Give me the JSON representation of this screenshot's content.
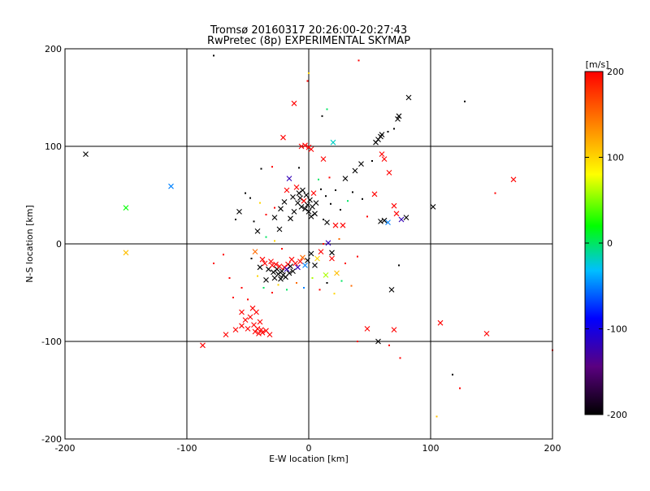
{
  "chart_data": {
    "type": "scatter",
    "title": "Tromsø 20160317 20:26:00-20:27:43",
    "subtitle": "RwPretec (8p) EXPERIMENTAL SKYMAP",
    "xlabel": "E-W location [km]",
    "ylabel": "N-S location [km]",
    "xlim": [
      -200,
      200
    ],
    "ylim": [
      -200,
      200
    ],
    "xticks": [
      "-200",
      "-100",
      "0",
      "100",
      "200"
    ],
    "yticks": [
      "-200",
      "-100",
      "0",
      "100",
      "200"
    ],
    "grid": true,
    "colorbar": {
      "label": "[m/s]",
      "min": -200,
      "max": 200,
      "ticks": [
        "200",
        "100",
        "0",
        "-100",
        "-200"
      ],
      "colormap": [
        "#000000",
        "#5a0080",
        "#0000ff",
        "#00bfff",
        "#00ff00",
        "#ffff00",
        "#ff8000",
        "#ff0000"
      ]
    },
    "marker_legend": {
      "cross": "x",
      "dot": "small point"
    },
    "points": [
      {
        "x": -183,
        "y": 92,
        "v": -200,
        "m": "x"
      },
      {
        "x": -150,
        "y": 37,
        "v": 20,
        "m": "x"
      },
      {
        "x": -150,
        "y": -9,
        "v": 110,
        "m": "x"
      },
      {
        "x": -113,
        "y": 59,
        "v": -50,
        "m": "x"
      },
      {
        "x": -87,
        "y": -104,
        "v": 200,
        "m": "x"
      },
      {
        "x": -68,
        "y": -93,
        "v": 200,
        "m": "x"
      },
      {
        "x": -60,
        "y": -88,
        "v": 200,
        "m": "x"
      },
      {
        "x": -57,
        "y": 33,
        "v": -200,
        "m": "x"
      },
      {
        "x": -55,
        "y": -70,
        "v": 200,
        "m": "x"
      },
      {
        "x": -55,
        "y": -84,
        "v": 200,
        "m": "x"
      },
      {
        "x": -52,
        "y": -78,
        "v": 200,
        "m": "x"
      },
      {
        "x": -50,
        "y": -87,
        "v": 200,
        "m": "x"
      },
      {
        "x": -48,
        "y": -75,
        "v": 200,
        "m": "x"
      },
      {
        "x": -46,
        "y": -66,
        "v": 200,
        "m": "x"
      },
      {
        "x": -45,
        "y": -83,
        "v": 200,
        "m": "x"
      },
      {
        "x": -44,
        "y": -90,
        "v": 200,
        "m": "x"
      },
      {
        "x": -43,
        "y": -70,
        "v": 200,
        "m": "x"
      },
      {
        "x": -42,
        "y": -87,
        "v": 200,
        "m": "x"
      },
      {
        "x": -41,
        "y": -92,
        "v": 200,
        "m": "x"
      },
      {
        "x": -40,
        "y": -80,
        "v": 200,
        "m": "x"
      },
      {
        "x": -39,
        "y": -88,
        "v": 200,
        "m": "x"
      },
      {
        "x": -38,
        "y": -91,
        "v": 200,
        "m": "x"
      },
      {
        "x": -35,
        "y": -89,
        "v": 200,
        "m": "x"
      },
      {
        "x": -32,
        "y": -93,
        "v": 200,
        "m": "x"
      },
      {
        "x": -42,
        "y": 13,
        "v": -200,
        "m": "x"
      },
      {
        "x": -44,
        "y": -8,
        "v": 150,
        "m": "x"
      },
      {
        "x": -40,
        "y": -24,
        "v": -200,
        "m": "x"
      },
      {
        "x": -38,
        "y": -16,
        "v": 200,
        "m": "x"
      },
      {
        "x": -36,
        "y": -20,
        "v": 200,
        "m": "x"
      },
      {
        "x": -35,
        "y": -37,
        "v": -200,
        "m": "x"
      },
      {
        "x": -33,
        "y": -26,
        "v": -200,
        "m": "x"
      },
      {
        "x": -31,
        "y": -18,
        "v": 200,
        "m": "x"
      },
      {
        "x": -30,
        "y": -22,
        "v": 200,
        "m": "x"
      },
      {
        "x": -29,
        "y": -29,
        "v": -200,
        "m": "x"
      },
      {
        "x": -28,
        "y": -35,
        "v": -200,
        "m": "x"
      },
      {
        "x": -27,
        "y": -21,
        "v": 200,
        "m": "x"
      },
      {
        "x": -26,
        "y": -26,
        "v": -200,
        "m": "x"
      },
      {
        "x": -25,
        "y": -31,
        "v": -200,
        "m": "x"
      },
      {
        "x": -24,
        "y": -23,
        "v": 200,
        "m": "x"
      },
      {
        "x": -23,
        "y": -36,
        "v": -200,
        "m": "x"
      },
      {
        "x": -22,
        "y": -28,
        "v": -200,
        "m": "x"
      },
      {
        "x": -21,
        "y": -32,
        "v": -200,
        "m": "x"
      },
      {
        "x": -20,
        "y": -24,
        "v": 200,
        "m": "x"
      },
      {
        "x": -19,
        "y": -34,
        "v": -200,
        "m": "x"
      },
      {
        "x": -18,
        "y": -26,
        "v": -120,
        "m": "x"
      },
      {
        "x": -17,
        "y": -21,
        "v": 200,
        "m": "x"
      },
      {
        "x": -16,
        "y": -30,
        "v": -200,
        "m": "x"
      },
      {
        "x": -15,
        "y": -23,
        "v": -200,
        "m": "x"
      },
      {
        "x": -14,
        "y": -16,
        "v": 200,
        "m": "x"
      },
      {
        "x": -13,
        "y": -28,
        "v": -200,
        "m": "x"
      },
      {
        "x": -11,
        "y": -20,
        "v": 200,
        "m": "x"
      },
      {
        "x": -9,
        "y": -24,
        "v": -120,
        "m": "x"
      },
      {
        "x": -7,
        "y": -18,
        "v": 200,
        "m": "x"
      },
      {
        "x": -5,
        "y": -14,
        "v": 150,
        "m": "x"
      },
      {
        "x": -3,
        "y": -22,
        "v": -50,
        "m": "x"
      },
      {
        "x": -1,
        "y": -17,
        "v": -200,
        "m": "x"
      },
      {
        "x": 2,
        "y": -10,
        "v": -200,
        "m": "x"
      },
      {
        "x": 5,
        "y": -22,
        "v": -200,
        "m": "x"
      },
      {
        "x": 7,
        "y": -15,
        "v": 100,
        "m": "x"
      },
      {
        "x": 10,
        "y": -8,
        "v": 200,
        "m": "x"
      },
      {
        "x": 14,
        "y": -32,
        "v": 60,
        "m": "x"
      },
      {
        "x": 19,
        "y": -15,
        "v": 200,
        "m": "x"
      },
      {
        "x": 23,
        "y": -30,
        "v": 110,
        "m": "x"
      },
      {
        "x": 19,
        "y": -9,
        "v": -200,
        "m": "x"
      },
      {
        "x": -28,
        "y": 27,
        "v": -200,
        "m": "x"
      },
      {
        "x": -24,
        "y": 15,
        "v": -200,
        "m": "x"
      },
      {
        "x": -23,
        "y": 36,
        "v": -200,
        "m": "x"
      },
      {
        "x": -20,
        "y": 43,
        "v": -200,
        "m": "x"
      },
      {
        "x": -18,
        "y": 55,
        "v": 200,
        "m": "x"
      },
      {
        "x": -16,
        "y": 67,
        "v": -120,
        "m": "x"
      },
      {
        "x": -15,
        "y": 26,
        "v": -200,
        "m": "x"
      },
      {
        "x": -13,
        "y": 48,
        "v": -200,
        "m": "x"
      },
      {
        "x": -12,
        "y": 33,
        "v": -200,
        "m": "x"
      },
      {
        "x": -10,
        "y": 58,
        "v": 200,
        "m": "x"
      },
      {
        "x": -9,
        "y": 42,
        "v": -200,
        "m": "x"
      },
      {
        "x": -8,
        "y": 52,
        "v": -200,
        "m": "x"
      },
      {
        "x": -7,
        "y": 47,
        "v": -200,
        "m": "x"
      },
      {
        "x": -6,
        "y": 38,
        "v": -200,
        "m": "x"
      },
      {
        "x": -5,
        "y": 55,
        "v": -200,
        "m": "x"
      },
      {
        "x": -4,
        "y": 44,
        "v": 200,
        "m": "x"
      },
      {
        "x": -3,
        "y": 36,
        "v": -200,
        "m": "x"
      },
      {
        "x": -2,
        "y": 50,
        "v": -200,
        "m": "x"
      },
      {
        "x": -1,
        "y": 40,
        "v": -200,
        "m": "x"
      },
      {
        "x": 0,
        "y": 33,
        "v": -200,
        "m": "x"
      },
      {
        "x": 1,
        "y": 45,
        "v": -200,
        "m": "x"
      },
      {
        "x": 2,
        "y": 28,
        "v": -200,
        "m": "x"
      },
      {
        "x": 3,
        "y": 38,
        "v": -200,
        "m": "x"
      },
      {
        "x": 4,
        "y": 52,
        "v": 200,
        "m": "x"
      },
      {
        "x": 5,
        "y": 31,
        "v": -200,
        "m": "x"
      },
      {
        "x": 6,
        "y": 42,
        "v": -200,
        "m": "x"
      },
      {
        "x": -6,
        "y": 100,
        "v": 200,
        "m": "x"
      },
      {
        "x": -3,
        "y": 101,
        "v": 200,
        "m": "x"
      },
      {
        "x": 0,
        "y": 99,
        "v": 200,
        "m": "x"
      },
      {
        "x": 2,
        "y": 97,
        "v": 200,
        "m": "x"
      },
      {
        "x": -12,
        "y": 144,
        "v": 200,
        "m": "x"
      },
      {
        "x": -21,
        "y": 109,
        "v": 200,
        "m": "x"
      },
      {
        "x": 12,
        "y": 87,
        "v": 200,
        "m": "x"
      },
      {
        "x": 20,
        "y": 104,
        "v": -20,
        "m": "x"
      },
      {
        "x": 16,
        "y": 1,
        "v": -120,
        "m": "x"
      },
      {
        "x": 15,
        "y": 22,
        "v": -200,
        "m": "x"
      },
      {
        "x": 22,
        "y": 19,
        "v": 200,
        "m": "x"
      },
      {
        "x": 28,
        "y": 19,
        "v": 200,
        "m": "x"
      },
      {
        "x": 30,
        "y": 67,
        "v": -200,
        "m": "x"
      },
      {
        "x": 38,
        "y": 75,
        "v": -200,
        "m": "x"
      },
      {
        "x": 43,
        "y": 82,
        "v": -200,
        "m": "x"
      },
      {
        "x": 55,
        "y": 104,
        "v": -200,
        "m": "x"
      },
      {
        "x": 57,
        "y": 107,
        "v": -200,
        "m": "x"
      },
      {
        "x": 59,
        "y": 110,
        "v": -200,
        "m": "x"
      },
      {
        "x": 60,
        "y": 112,
        "v": -200,
        "m": "x"
      },
      {
        "x": 73,
        "y": 128,
        "v": -200,
        "m": "x"
      },
      {
        "x": 74,
        "y": 131,
        "v": -200,
        "m": "x"
      },
      {
        "x": 82,
        "y": 150,
        "v": -200,
        "m": "x"
      },
      {
        "x": 60,
        "y": 92,
        "v": 200,
        "m": "x"
      },
      {
        "x": 62,
        "y": 87,
        "v": 200,
        "m": "x"
      },
      {
        "x": 66,
        "y": 73,
        "v": 200,
        "m": "x"
      },
      {
        "x": 54,
        "y": 51,
        "v": 200,
        "m": "x"
      },
      {
        "x": 59,
        "y": 23,
        "v": -200,
        "m": "x"
      },
      {
        "x": 62,
        "y": 24,
        "v": -200,
        "m": "x"
      },
      {
        "x": 65,
        "y": 22,
        "v": -50,
        "m": "x"
      },
      {
        "x": 70,
        "y": 39,
        "v": 200,
        "m": "x"
      },
      {
        "x": 72,
        "y": 31,
        "v": 200,
        "m": "x"
      },
      {
        "x": 76,
        "y": 25,
        "v": -120,
        "m": "x"
      },
      {
        "x": 80,
        "y": 27,
        "v": -200,
        "m": "x"
      },
      {
        "x": 102,
        "y": 38,
        "v": -200,
        "m": "x"
      },
      {
        "x": 168,
        "y": 66,
        "v": 200,
        "m": "x"
      },
      {
        "x": 108,
        "y": -81,
        "v": 200,
        "m": "x"
      },
      {
        "x": 146,
        "y": -92,
        "v": 200,
        "m": "x"
      },
      {
        "x": 48,
        "y": -87,
        "v": 200,
        "m": "x"
      },
      {
        "x": 57,
        "y": -100,
        "v": -200,
        "m": "x"
      },
      {
        "x": 68,
        "y": -47,
        "v": -200,
        "m": "x"
      },
      {
        "x": 70,
        "y": -88,
        "v": 200,
        "m": "x"
      },
      {
        "x": -78,
        "y": 193,
        "v": -200,
        "m": "."
      },
      {
        "x": 41,
        "y": 188,
        "v": 200,
        "m": "."
      },
      {
        "x": 0,
        "y": 175,
        "v": 100,
        "m": "."
      },
      {
        "x": -1,
        "y": 167,
        "v": 200,
        "m": "."
      },
      {
        "x": 15,
        "y": 138,
        "v": 0,
        "m": "."
      },
      {
        "x": 11,
        "y": 131,
        "v": -200,
        "m": "."
      },
      {
        "x": 128,
        "y": 146,
        "v": -200,
        "m": "."
      },
      {
        "x": 153,
        "y": 52,
        "v": 200,
        "m": "."
      },
      {
        "x": -52,
        "y": 52,
        "v": -200,
        "m": "."
      },
      {
        "x": -48,
        "y": 47,
        "v": -200,
        "m": "."
      },
      {
        "x": -39,
        "y": 77,
        "v": -200,
        "m": "."
      },
      {
        "x": -30,
        "y": 79,
        "v": 200,
        "m": "."
      },
      {
        "x": -45,
        "y": 23,
        "v": -200,
        "m": "."
      },
      {
        "x": -60,
        "y": 25,
        "v": -200,
        "m": "."
      },
      {
        "x": -28,
        "y": 37,
        "v": 200,
        "m": "."
      },
      {
        "x": -35,
        "y": 30,
        "v": 200,
        "m": "."
      },
      {
        "x": -40,
        "y": 42,
        "v": 100,
        "m": "."
      },
      {
        "x": 10,
        "y": 56,
        "v": -200,
        "m": "."
      },
      {
        "x": 14,
        "y": 49,
        "v": -200,
        "m": "."
      },
      {
        "x": 18,
        "y": 41,
        "v": -200,
        "m": "."
      },
      {
        "x": 22,
        "y": 55,
        "v": -200,
        "m": "."
      },
      {
        "x": 26,
        "y": 35,
        "v": -200,
        "m": "."
      },
      {
        "x": 32,
        "y": 44,
        "v": 0,
        "m": "."
      },
      {
        "x": 36,
        "y": 53,
        "v": -200,
        "m": "."
      },
      {
        "x": 44,
        "y": 46,
        "v": -200,
        "m": "."
      },
      {
        "x": 48,
        "y": 28,
        "v": 200,
        "m": "."
      },
      {
        "x": 8,
        "y": 66,
        "v": 0,
        "m": "."
      },
      {
        "x": 12,
        "y": 25,
        "v": -200,
        "m": "."
      },
      {
        "x": -8,
        "y": 78,
        "v": -200,
        "m": "."
      },
      {
        "x": 17,
        "y": 68,
        "v": 200,
        "m": "."
      },
      {
        "x": 52,
        "y": 85,
        "v": -200,
        "m": "."
      },
      {
        "x": 70,
        "y": 118,
        "v": -200,
        "m": "."
      },
      {
        "x": 65,
        "y": 115,
        "v": -200,
        "m": "."
      },
      {
        "x": -35,
        "y": 7,
        "v": 0,
        "m": "."
      },
      {
        "x": -28,
        "y": 3,
        "v": 100,
        "m": "."
      },
      {
        "x": -22,
        "y": -5,
        "v": 200,
        "m": "."
      },
      {
        "x": -47,
        "y": -15,
        "v": -200,
        "m": "."
      },
      {
        "x": -42,
        "y": -33,
        "v": 100,
        "m": "."
      },
      {
        "x": -37,
        "y": -45,
        "v": 0,
        "m": "."
      },
      {
        "x": -30,
        "y": -50,
        "v": 200,
        "m": "."
      },
      {
        "x": -25,
        "y": -42,
        "v": 100,
        "m": "."
      },
      {
        "x": -18,
        "y": -47,
        "v": 0,
        "m": "."
      },
      {
        "x": -10,
        "y": -40,
        "v": 150,
        "m": "."
      },
      {
        "x": -4,
        "y": -45,
        "v": -50,
        "m": "."
      },
      {
        "x": 3,
        "y": -35,
        "v": 60,
        "m": "."
      },
      {
        "x": 9,
        "y": -47,
        "v": 200,
        "m": "."
      },
      {
        "x": 15,
        "y": -40,
        "v": -200,
        "m": "."
      },
      {
        "x": 21,
        "y": -51,
        "v": 100,
        "m": "."
      },
      {
        "x": 27,
        "y": -38,
        "v": 0,
        "m": "."
      },
      {
        "x": 35,
        "y": -43,
        "v": 150,
        "m": "."
      },
      {
        "x": -62,
        "y": -55,
        "v": 200,
        "m": "."
      },
      {
        "x": -55,
        "y": -45,
        "v": 200,
        "m": "."
      },
      {
        "x": -50,
        "y": -57,
        "v": 200,
        "m": "."
      },
      {
        "x": -65,
        "y": -35,
        "v": 200,
        "m": "."
      },
      {
        "x": -78,
        "y": -20,
        "v": 200,
        "m": "."
      },
      {
        "x": -70,
        "y": -11,
        "v": 200,
        "m": "."
      },
      {
        "x": 12,
        "y": 0,
        "v": 200,
        "m": "."
      },
      {
        "x": 25,
        "y": 5,
        "v": 150,
        "m": "."
      },
      {
        "x": 30,
        "y": -20,
        "v": 200,
        "m": "."
      },
      {
        "x": 40,
        "y": -13,
        "v": 200,
        "m": "."
      },
      {
        "x": 74,
        "y": -22,
        "v": -200,
        "m": "."
      },
      {
        "x": 40,
        "y": -100,
        "v": 200,
        "m": "."
      },
      {
        "x": 75,
        "y": -117,
        "v": 200,
        "m": "."
      },
      {
        "x": 118,
        "y": -134,
        "v": -200,
        "m": "."
      },
      {
        "x": 124,
        "y": -148,
        "v": 200,
        "m": "."
      },
      {
        "x": 105,
        "y": -177,
        "v": 110,
        "m": "."
      },
      {
        "x": 200,
        "y": -109,
        "v": 200,
        "m": "."
      },
      {
        "x": 66,
        "y": -104,
        "v": 200,
        "m": "."
      }
    ]
  }
}
